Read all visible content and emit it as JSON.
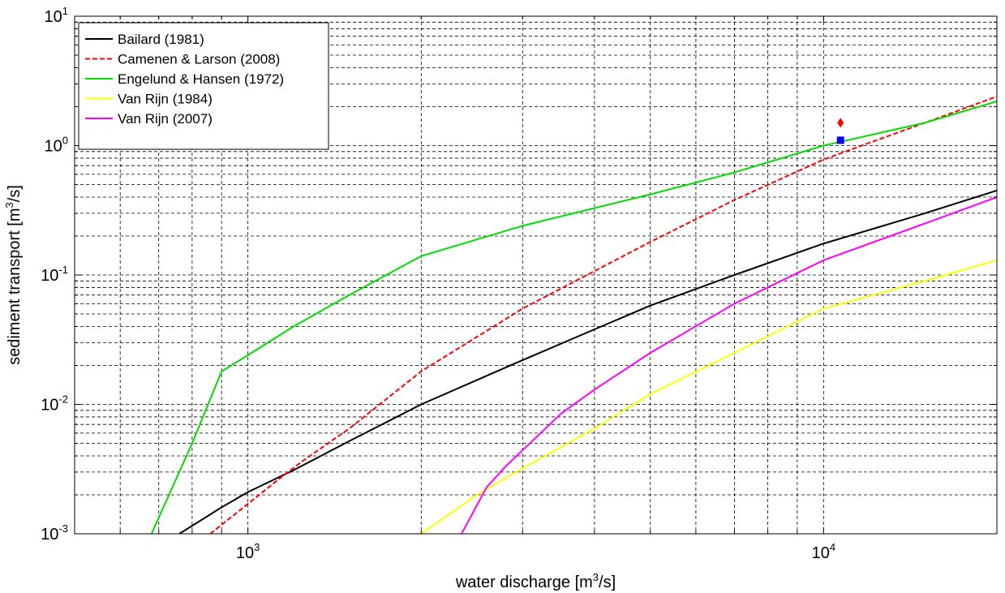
{
  "chart_data": {
    "type": "line",
    "xscale": "log",
    "yscale": "log",
    "xlim": [
      500,
      20000
    ],
    "ylim": [
      0.001,
      10
    ],
    "grid": true,
    "legend_position": "top-left",
    "xlabel": {
      "main": "water discharge [m",
      "sup": "3",
      "tail": "/s]"
    },
    "ylabel": {
      "main": "sediment transport [m",
      "sup": "3",
      "tail": "/s]"
    },
    "x_ticks": [
      {
        "base": "10",
        "exp": "3",
        "value": 1000
      },
      {
        "base": "10",
        "exp": "4",
        "value": 10000
      }
    ],
    "y_ticks": [
      {
        "base": "10",
        "exp": "-3",
        "value": 0.001
      },
      {
        "base": "10",
        "exp": "-2",
        "value": 0.01
      },
      {
        "base": "10",
        "exp": "-1",
        "value": 0.1
      },
      {
        "base": "10",
        "exp": "0",
        "value": 1
      },
      {
        "base": "10",
        "exp": "1",
        "value": 10
      }
    ],
    "series": [
      {
        "name": "Bailard (1981)",
        "color": "#000000",
        "dash": "solid",
        "x": [
          760,
          900,
          1000,
          1200,
          1500,
          2000,
          3000,
          4000,
          5000,
          7000,
          10000,
          15000,
          20000
        ],
        "y": [
          0.001,
          0.0016,
          0.0021,
          0.0031,
          0.0052,
          0.01,
          0.022,
          0.038,
          0.058,
          0.1,
          0.175,
          0.3,
          0.45
        ]
      },
      {
        "name": "Camenen & Larson (2008)",
        "color": "#ff0000",
        "dash": "dashed",
        "x": [
          860,
          1000,
          1150,
          1250,
          1500,
          2000,
          3000,
          5000,
          7000,
          10000,
          12000,
          15000,
          20000
        ],
        "y": [
          0.001,
          0.0017,
          0.0028,
          0.0037,
          0.0065,
          0.018,
          0.055,
          0.18,
          0.38,
          0.78,
          1.05,
          1.5,
          2.4
        ]
      },
      {
        "name": "Engelund & Hansen (1972)",
        "color": "#00dd00",
        "dash": "solid",
        "x": [
          680,
          800,
          900,
          1000,
          1200,
          1500,
          2000,
          3000,
          5000,
          7000,
          10000,
          15000,
          20000
        ],
        "y": [
          0.001,
          0.005,
          0.018,
          0.024,
          0.04,
          0.07,
          0.14,
          0.24,
          0.42,
          0.62,
          1.0,
          1.5,
          2.2
        ]
      },
      {
        "name": "Van Rijn (1984)",
        "color": "#ffff00",
        "dash": "solid",
        "x": [
          2000,
          2500,
          3000,
          4000,
          5000,
          7000,
          10000,
          15000,
          20000
        ],
        "y": [
          0.001,
          0.002,
          0.0032,
          0.0065,
          0.012,
          0.025,
          0.055,
          0.09,
          0.13
        ]
      },
      {
        "name": "Van Rijn (2007)",
        "color": "#ff00ff",
        "dash": "solid",
        "x": [
          2350,
          2600,
          2800,
          3500,
          4000,
          5000,
          7000,
          10000,
          15000,
          20000
        ],
        "y": [
          0.001,
          0.0023,
          0.0033,
          0.0085,
          0.013,
          0.025,
          0.06,
          0.13,
          0.25,
          0.4
        ]
      }
    ],
    "markers": [
      {
        "shape": "diamond",
        "color": "#ff0000",
        "x": 10700,
        "y": 1.5
      },
      {
        "shape": "square",
        "color": "#0000ff",
        "x": 10700,
        "y": 1.1
      }
    ]
  }
}
